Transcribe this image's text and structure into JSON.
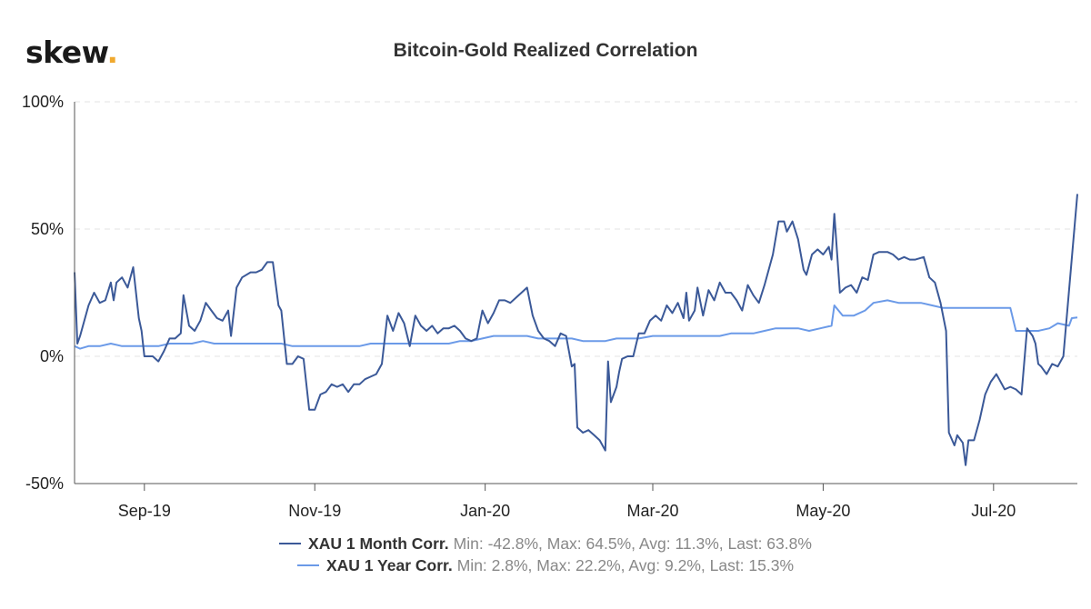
{
  "brand": {
    "name": "skew",
    "dot": "."
  },
  "chart_data": {
    "type": "line",
    "title": "Bitcoin-Gold Realized Correlation",
    "xlabel": "",
    "ylabel": "",
    "x_ticks": [
      "Sep-19",
      "Nov-19",
      "Jan-20",
      "Mar-20",
      "May-20",
      "Jul-20"
    ],
    "x_range": [
      "2019-08-07",
      "2020-07-31"
    ],
    "y_ticks": [
      "100%",
      "50%",
      "0%",
      "-50%"
    ],
    "ylim": [
      -50,
      100
    ],
    "y_unit": "%",
    "grid": "horizontal dashed",
    "legend_position": "bottom-center",
    "series": [
      {
        "name": "XAU 1 Month Corr.",
        "stats": "Min: -42.8%, Max: 64.5%, Avg: 11.3%, Last: 63.8%",
        "color": "#3b5998",
        "points": [
          [
            "2019-08-07",
            33
          ],
          [
            "2019-08-08",
            5
          ],
          [
            "2019-08-09",
            8
          ],
          [
            "2019-08-10",
            12
          ],
          [
            "2019-08-12",
            20
          ],
          [
            "2019-08-14",
            25
          ],
          [
            "2019-08-16",
            21
          ],
          [
            "2019-08-18",
            22
          ],
          [
            "2019-08-20",
            29
          ],
          [
            "2019-08-21",
            22
          ],
          [
            "2019-08-22",
            29
          ],
          [
            "2019-08-24",
            31
          ],
          [
            "2019-08-26",
            27
          ],
          [
            "2019-08-28",
            35
          ],
          [
            "2019-08-30",
            15
          ],
          [
            "2019-08-31",
            10
          ],
          [
            "2019-09-01",
            0
          ],
          [
            "2019-09-04",
            0
          ],
          [
            "2019-09-06",
            -2
          ],
          [
            "2019-09-08",
            2
          ],
          [
            "2019-09-10",
            7
          ],
          [
            "2019-09-12",
            7
          ],
          [
            "2019-09-14",
            9
          ],
          [
            "2019-09-15",
            24
          ],
          [
            "2019-09-17",
            12
          ],
          [
            "2019-09-19",
            10
          ],
          [
            "2019-09-21",
            14
          ],
          [
            "2019-09-23",
            21
          ],
          [
            "2019-09-25",
            18
          ],
          [
            "2019-09-27",
            15
          ],
          [
            "2019-09-29",
            14
          ],
          [
            "2019-10-01",
            18
          ],
          [
            "2019-10-02",
            8
          ],
          [
            "2019-10-04",
            27
          ],
          [
            "2019-10-06",
            31
          ],
          [
            "2019-10-09",
            33
          ],
          [
            "2019-10-11",
            33
          ],
          [
            "2019-10-13",
            34
          ],
          [
            "2019-10-15",
            37
          ],
          [
            "2019-10-17",
            37
          ],
          [
            "2019-10-19",
            20
          ],
          [
            "2019-10-20",
            18
          ],
          [
            "2019-10-22",
            -3
          ],
          [
            "2019-10-24",
            -3
          ],
          [
            "2019-10-26",
            0
          ],
          [
            "2019-10-28",
            -1
          ],
          [
            "2019-10-30",
            -21
          ],
          [
            "2019-11-01",
            -21
          ],
          [
            "2019-11-03",
            -15
          ],
          [
            "2019-11-05",
            -14
          ],
          [
            "2019-11-07",
            -11
          ],
          [
            "2019-11-09",
            -12
          ],
          [
            "2019-11-11",
            -11
          ],
          [
            "2019-11-13",
            -14
          ],
          [
            "2019-11-15",
            -11
          ],
          [
            "2019-11-17",
            -11
          ],
          [
            "2019-11-19",
            -9
          ],
          [
            "2019-11-21",
            -8
          ],
          [
            "2019-11-23",
            -7
          ],
          [
            "2019-11-25",
            -3
          ],
          [
            "2019-11-27",
            16
          ],
          [
            "2019-11-29",
            10
          ],
          [
            "2019-12-01",
            17
          ],
          [
            "2019-12-03",
            13
          ],
          [
            "2019-12-05",
            4
          ],
          [
            "2019-12-07",
            16
          ],
          [
            "2019-12-09",
            12
          ],
          [
            "2019-12-11",
            10
          ],
          [
            "2019-12-13",
            12
          ],
          [
            "2019-12-15",
            9
          ],
          [
            "2019-12-17",
            11
          ],
          [
            "2019-12-19",
            11
          ],
          [
            "2019-12-21",
            12
          ],
          [
            "2019-12-23",
            10
          ],
          [
            "2019-12-25",
            7
          ],
          [
            "2019-12-27",
            6
          ],
          [
            "2019-12-29",
            7
          ],
          [
            "2019-12-31",
            18
          ],
          [
            "2020-01-02",
            13
          ],
          [
            "2020-01-04",
            17
          ],
          [
            "2020-01-06",
            22
          ],
          [
            "2020-01-08",
            22
          ],
          [
            "2020-01-10",
            21
          ],
          [
            "2020-01-12",
            23
          ],
          [
            "2020-01-14",
            25
          ],
          [
            "2020-01-16",
            27
          ],
          [
            "2020-01-18",
            16
          ],
          [
            "2020-01-20",
            10
          ],
          [
            "2020-01-22",
            7
          ],
          [
            "2020-01-24",
            6
          ],
          [
            "2020-01-26",
            4
          ],
          [
            "2020-01-28",
            9
          ],
          [
            "2020-01-30",
            8
          ],
          [
            "2020-02-01",
            -4
          ],
          [
            "2020-02-02",
            -3
          ],
          [
            "2020-02-03",
            -28
          ],
          [
            "2020-02-05",
            -30
          ],
          [
            "2020-02-07",
            -29
          ],
          [
            "2020-02-09",
            -31
          ],
          [
            "2020-02-11",
            -33
          ],
          [
            "2020-02-13",
            -37
          ],
          [
            "2020-02-14",
            -2
          ],
          [
            "2020-02-15",
            -18
          ],
          [
            "2020-02-17",
            -12
          ],
          [
            "2020-02-18",
            -6
          ],
          [
            "2020-02-19",
            -1
          ],
          [
            "2020-02-21",
            0
          ],
          [
            "2020-02-23",
            0
          ],
          [
            "2020-02-25",
            9
          ],
          [
            "2020-02-27",
            9
          ],
          [
            "2020-02-29",
            14
          ],
          [
            "2020-03-02",
            16
          ],
          [
            "2020-03-04",
            14
          ],
          [
            "2020-03-06",
            20
          ],
          [
            "2020-03-08",
            17
          ],
          [
            "2020-03-10",
            21
          ],
          [
            "2020-03-12",
            15
          ],
          [
            "2020-03-13",
            25
          ],
          [
            "2020-03-14",
            14
          ],
          [
            "2020-03-16",
            18
          ],
          [
            "2020-03-17",
            27
          ],
          [
            "2020-03-19",
            16
          ],
          [
            "2020-03-21",
            26
          ],
          [
            "2020-03-23",
            22
          ],
          [
            "2020-03-25",
            29
          ],
          [
            "2020-03-27",
            25
          ],
          [
            "2020-03-29",
            25
          ],
          [
            "2020-03-31",
            22
          ],
          [
            "2020-04-02",
            18
          ],
          [
            "2020-04-04",
            28
          ],
          [
            "2020-04-06",
            24
          ],
          [
            "2020-04-08",
            21
          ],
          [
            "2020-04-10",
            28
          ],
          [
            "2020-04-13",
            40
          ],
          [
            "2020-04-15",
            53
          ],
          [
            "2020-04-17",
            53
          ],
          [
            "2020-04-18",
            49
          ],
          [
            "2020-04-20",
            53
          ],
          [
            "2020-04-22",
            46
          ],
          [
            "2020-04-24",
            34
          ],
          [
            "2020-04-25",
            32
          ],
          [
            "2020-04-27",
            40
          ],
          [
            "2020-04-29",
            42
          ],
          [
            "2020-05-01",
            40
          ],
          [
            "2020-05-03",
            43
          ],
          [
            "2020-05-04",
            38
          ],
          [
            "2020-05-05",
            56
          ],
          [
            "2020-05-07",
            25
          ],
          [
            "2020-05-09",
            27
          ],
          [
            "2020-05-11",
            28
          ],
          [
            "2020-05-13",
            25
          ],
          [
            "2020-05-15",
            31
          ],
          [
            "2020-05-17",
            30
          ],
          [
            "2020-05-19",
            40
          ],
          [
            "2020-05-21",
            41
          ],
          [
            "2020-05-24",
            41
          ],
          [
            "2020-05-26",
            40
          ],
          [
            "2020-05-28",
            38
          ],
          [
            "2020-05-30",
            39
          ],
          [
            "2020-06-01",
            38
          ],
          [
            "2020-06-03",
            38
          ],
          [
            "2020-06-06",
            39
          ],
          [
            "2020-06-08",
            31
          ],
          [
            "2020-06-10",
            29
          ],
          [
            "2020-06-12",
            21
          ],
          [
            "2020-06-14",
            10
          ],
          [
            "2020-06-15",
            -30
          ],
          [
            "2020-06-17",
            -35
          ],
          [
            "2020-06-18",
            -31
          ],
          [
            "2020-06-20",
            -34
          ],
          [
            "2020-06-21",
            -42.8
          ],
          [
            "2020-06-22",
            -33
          ],
          [
            "2020-06-24",
            -33
          ],
          [
            "2020-06-26",
            -25
          ],
          [
            "2020-06-28",
            -15
          ],
          [
            "2020-06-30",
            -10
          ],
          [
            "2020-07-02",
            -7
          ],
          [
            "2020-07-03",
            -9
          ],
          [
            "2020-07-05",
            -13
          ],
          [
            "2020-07-07",
            -12
          ],
          [
            "2020-07-09",
            -13
          ],
          [
            "2020-07-11",
            -15
          ],
          [
            "2020-07-13",
            11
          ],
          [
            "2020-07-15",
            8
          ],
          [
            "2020-07-16",
            5
          ],
          [
            "2020-07-17",
            -3
          ],
          [
            "2020-07-18",
            -4
          ],
          [
            "2020-07-20",
            -7
          ],
          [
            "2020-07-22",
            -3
          ],
          [
            "2020-07-24",
            -4
          ],
          [
            "2020-07-26",
            0
          ],
          [
            "2020-07-31",
            63.8
          ]
        ]
      },
      {
        "name": "XAU 1 Year Corr.",
        "stats": "Min: 2.8%, Max: 22.2%, Avg: 9.2%, Last: 15.3%",
        "color": "#6b9ae8",
        "points": [
          [
            "2019-08-07",
            4
          ],
          [
            "2019-08-09",
            3
          ],
          [
            "2019-08-12",
            4
          ],
          [
            "2019-08-16",
            4
          ],
          [
            "2019-08-20",
            5
          ],
          [
            "2019-08-24",
            4
          ],
          [
            "2019-08-28",
            4
          ],
          [
            "2019-09-01",
            4
          ],
          [
            "2019-09-06",
            4
          ],
          [
            "2019-09-10",
            5
          ],
          [
            "2019-09-14",
            5
          ],
          [
            "2019-09-18",
            5
          ],
          [
            "2019-09-22",
            6
          ],
          [
            "2019-09-26",
            5
          ],
          [
            "2019-09-30",
            5
          ],
          [
            "2019-10-04",
            5
          ],
          [
            "2019-10-08",
            5
          ],
          [
            "2019-10-12",
            5
          ],
          [
            "2019-10-16",
            5
          ],
          [
            "2019-10-20",
            5
          ],
          [
            "2019-10-24",
            4
          ],
          [
            "2019-10-28",
            4
          ],
          [
            "2019-11-01",
            4
          ],
          [
            "2019-11-05",
            4
          ],
          [
            "2019-11-09",
            4
          ],
          [
            "2019-11-13",
            4
          ],
          [
            "2019-11-17",
            4
          ],
          [
            "2019-11-21",
            5
          ],
          [
            "2019-11-25",
            5
          ],
          [
            "2019-11-29",
            5
          ],
          [
            "2019-12-03",
            5
          ],
          [
            "2019-12-07",
            5
          ],
          [
            "2019-12-11",
            5
          ],
          [
            "2019-12-15",
            5
          ],
          [
            "2019-12-19",
            5
          ],
          [
            "2019-12-23",
            6
          ],
          [
            "2019-12-27",
            6
          ],
          [
            "2019-12-31",
            7
          ],
          [
            "2020-01-04",
            8
          ],
          [
            "2020-01-08",
            8
          ],
          [
            "2020-01-12",
            8
          ],
          [
            "2020-01-16",
            8
          ],
          [
            "2020-01-20",
            7
          ],
          [
            "2020-01-24",
            7
          ],
          [
            "2020-01-28",
            7
          ],
          [
            "2020-02-01",
            7
          ],
          [
            "2020-02-05",
            6
          ],
          [
            "2020-02-09",
            6
          ],
          [
            "2020-02-13",
            6
          ],
          [
            "2020-02-17",
            7
          ],
          [
            "2020-02-21",
            7
          ],
          [
            "2020-02-25",
            7
          ],
          [
            "2020-03-01",
            8
          ],
          [
            "2020-03-05",
            8
          ],
          [
            "2020-03-09",
            8
          ],
          [
            "2020-03-13",
            8
          ],
          [
            "2020-03-17",
            8
          ],
          [
            "2020-03-21",
            8
          ],
          [
            "2020-03-25",
            8
          ],
          [
            "2020-03-29",
            9
          ],
          [
            "2020-04-02",
            9
          ],
          [
            "2020-04-06",
            9
          ],
          [
            "2020-04-10",
            10
          ],
          [
            "2020-04-14",
            11
          ],
          [
            "2020-04-18",
            11
          ],
          [
            "2020-04-22",
            11
          ],
          [
            "2020-04-26",
            10
          ],
          [
            "2020-04-30",
            11
          ],
          [
            "2020-05-04",
            12
          ],
          [
            "2020-05-05",
            20
          ],
          [
            "2020-05-08",
            16
          ],
          [
            "2020-05-12",
            16
          ],
          [
            "2020-05-16",
            18
          ],
          [
            "2020-05-19",
            21
          ],
          [
            "2020-05-24",
            22
          ],
          [
            "2020-05-28",
            21
          ],
          [
            "2020-06-01",
            21
          ],
          [
            "2020-06-05",
            21
          ],
          [
            "2020-06-09",
            20
          ],
          [
            "2020-06-13",
            19
          ],
          [
            "2020-06-17",
            19
          ],
          [
            "2020-06-21",
            19
          ],
          [
            "2020-06-25",
            19
          ],
          [
            "2020-06-29",
            19
          ],
          [
            "2020-07-03",
            19
          ],
          [
            "2020-07-07",
            19
          ],
          [
            "2020-07-09",
            10
          ],
          [
            "2020-07-13",
            10
          ],
          [
            "2020-07-17",
            10
          ],
          [
            "2020-07-21",
            11
          ],
          [
            "2020-07-24",
            13
          ],
          [
            "2020-07-28",
            12
          ],
          [
            "2020-07-29",
            15
          ],
          [
            "2020-07-31",
            15.3
          ]
        ]
      }
    ]
  }
}
